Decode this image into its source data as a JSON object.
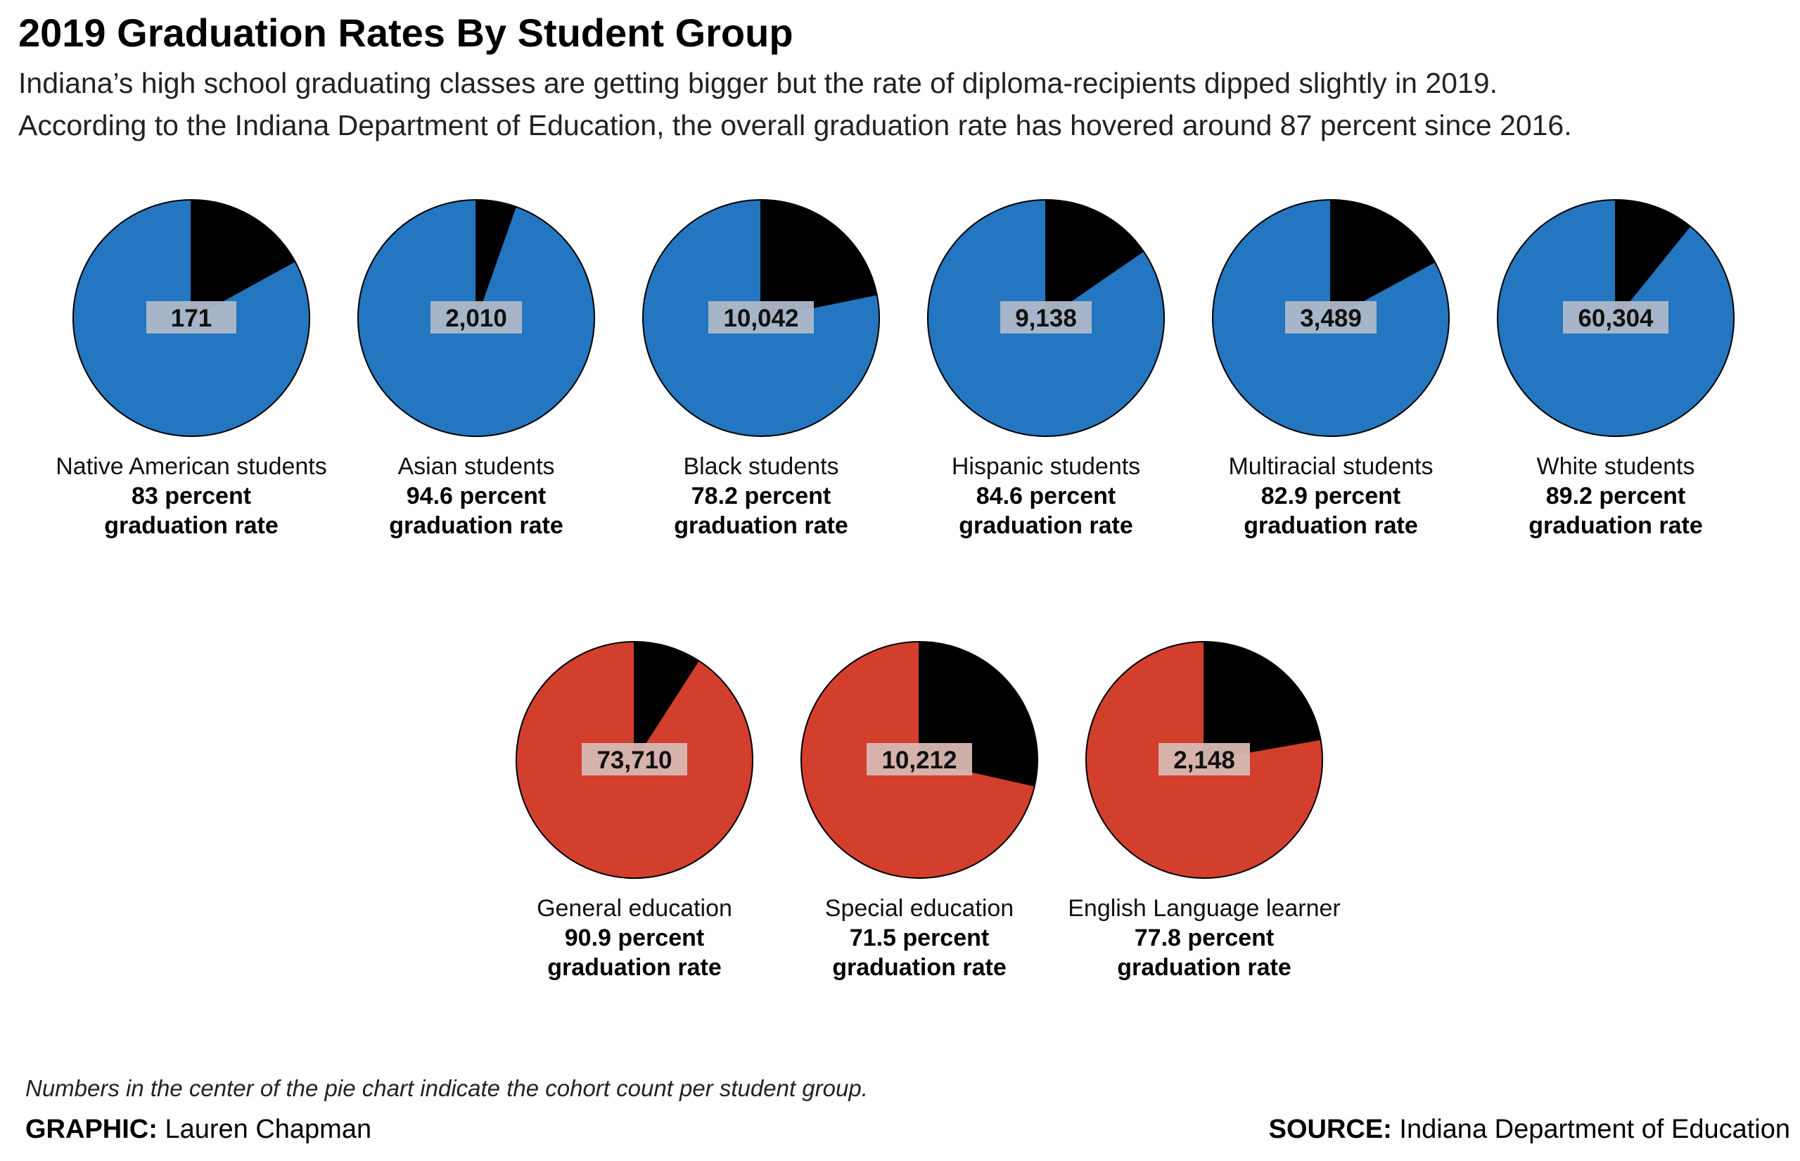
{
  "title": "2019 Graduation Rates By Student Group",
  "subtitle_lines": [
    "Indiana’s high school graduating classes are getting bigger but the rate of diploma-recipients dipped slightly in 2019.",
    "According to the Indiana Department of Education, the overall graduation rate has hovered around 87 percent since 2016."
  ],
  "note": "Numbers in the center of the pie chart indicate the cohort count per student group.",
  "credit": {
    "label": "GRAPHIC:",
    "value": "Lauren Chapman"
  },
  "source": {
    "label": "SOURCE:",
    "value": "Indiana Department of Education"
  },
  "colors": {
    "race_groups": "#2376bf",
    "program_groups": "#d23f2c",
    "non_graduates": "#000000",
    "count_label_bg_blue": "#aeb8c8",
    "count_label_bg_red": "#d7b8b2"
  },
  "chart_data": {
    "type": "pie",
    "unit": "percent",
    "groups": [
      {
        "name": "Native American students",
        "rate": 83,
        "rate_label": "83 percent",
        "rate_suffix": "graduation rate",
        "cohort": "171",
        "color": "#2376bf",
        "label_bg": "#aeb8c8",
        "row": 1
      },
      {
        "name": "Asian students",
        "rate": 94.6,
        "rate_label": "94.6 percent",
        "rate_suffix": "graduation rate",
        "cohort": "2,010",
        "color": "#2376bf",
        "label_bg": "#aeb8c8",
        "row": 1
      },
      {
        "name": "Black students",
        "rate": 78.2,
        "rate_label": "78.2 percent",
        "rate_suffix": "graduation rate",
        "cohort": "10,042",
        "color": "#2376bf",
        "label_bg": "#aeb8c8",
        "row": 1
      },
      {
        "name": "Hispanic students",
        "rate": 84.6,
        "rate_label": "84.6 percent",
        "rate_suffix": "graduation rate",
        "cohort": "9,138",
        "color": "#2376bf",
        "label_bg": "#aeb8c8",
        "row": 1
      },
      {
        "name": "Multiracial students",
        "rate": 82.9,
        "rate_label": "82.9 percent",
        "rate_suffix": "graduation rate",
        "cohort": "3,489",
        "color": "#2376bf",
        "label_bg": "#aeb8c8",
        "row": 1
      },
      {
        "name": "White students",
        "rate": 89.2,
        "rate_label": "89.2 percent",
        "rate_suffix": "graduation rate",
        "cohort": "60,304",
        "color": "#2376bf",
        "label_bg": "#aeb8c8",
        "row": 1
      },
      {
        "name": "General education",
        "rate": 90.9,
        "rate_label": "90.9 percent",
        "rate_suffix": "graduation rate",
        "cohort": "73,710",
        "color": "#d23f2c",
        "label_bg": "#d7b8b2",
        "row": 2
      },
      {
        "name": "Special education",
        "rate": 71.5,
        "rate_label": "71.5 percent",
        "rate_suffix": "graduation rate",
        "cohort": "10,212",
        "color": "#d23f2c",
        "label_bg": "#d7b8b2",
        "row": 2
      },
      {
        "name": "English Language learner",
        "rate": 77.8,
        "rate_label": "77.8 percent",
        "rate_suffix": "graduation rate",
        "cohort": "2,148",
        "color": "#d23f2c",
        "label_bg": "#d7b8b2",
        "row": 2
      }
    ]
  }
}
